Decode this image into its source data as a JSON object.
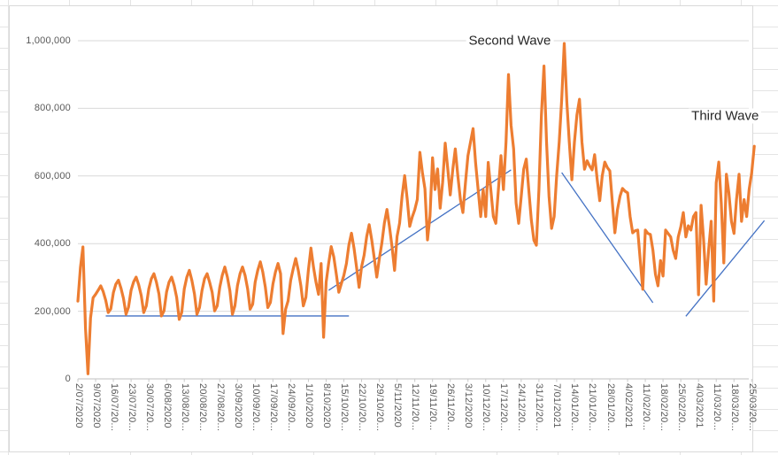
{
  "chart_data": {
    "type": "line",
    "title": "",
    "x_start_label": "2/07/2020",
    "x_cadence": "daily values, weekly tick labels",
    "x_tick_labels": [
      "2/07/2020",
      "9/07/2020",
      "16/07/20...",
      "23/07/20...",
      "30/07/20...",
      "6/08/2020",
      "13/08/20...",
      "20/08/20...",
      "27/08/20...",
      "3/09/2020",
      "10/09/20...",
      "17/09/20...",
      "24/09/20...",
      "1/10/2020",
      "8/10/2020",
      "15/10/20...",
      "22/10/20...",
      "29/10/20...",
      "5/11/2020",
      "12/11/20...",
      "19/11/20...",
      "26/11/20...",
      "3/12/2020",
      "10/12/20...",
      "17/12/20...",
      "24/12/20...",
      "31/12/20...",
      "7/01/2021",
      "14/01/20...",
      "21/01/20...",
      "28/01/20...",
      "4/02/2021",
      "11/02/20...",
      "18/02/20...",
      "25/02/20...",
      "4/03/2021",
      "11/03/20...",
      "18/03/20...",
      "25/03/20..."
    ],
    "y_tick_labels": [
      "0",
      "200,000",
      "400,000",
      "600,000",
      "800,000",
      "1,000,000"
    ],
    "y_min": 0,
    "y_max": 1000000,
    "grid": true,
    "legend": false,
    "series": [
      {
        "name": "daily-series",
        "color": "#ED7D31",
        "values": [
          230000,
          330000,
          390000,
          150000,
          15000,
          180000,
          240000,
          250000,
          262000,
          275000,
          258000,
          232000,
          196000,
          207000,
          255000,
          280000,
          292000,
          268000,
          238000,
          191000,
          212000,
          262000,
          287000,
          301000,
          278000,
          246000,
          196000,
          216000,
          266000,
          296000,
          311000,
          286000,
          251000,
          186000,
          201000,
          257000,
          286000,
          301000,
          276000,
          241000,
          176000,
          196000,
          266000,
          301000,
          321000,
          291000,
          251000,
          191000,
          211000,
          261000,
          296000,
          311000,
          286000,
          256000,
          201000,
          216000,
          271000,
          306000,
          331000,
          301000,
          261000,
          191000,
          216000,
          276000,
          311000,
          331000,
          306000,
          266000,
          206000,
          221000,
          286000,
          321000,
          346000,
          316000,
          271000,
          211000,
          226000,
          281000,
          316000,
          341000,
          311000,
          134000,
          206000,
          231000,
          291000,
          326000,
          356000,
          321000,
          276000,
          216000,
          241000,
          321000,
          387000,
          330000,
          286000,
          250000,
          341000,
          123000,
          286000,
          341000,
          391000,
          361000,
          311000,
          256000,
          281000,
          306000,
          341000,
          396000,
          431000,
          386000,
          331000,
          271000,
          331000,
          366000,
          421000,
          456000,
          411000,
          356000,
          301000,
          356000,
          401000,
          461000,
          501000,
          451000,
          391000,
          321000,
          421000,
          461000,
          541000,
          601000,
          531000,
          451000,
          479000,
          500000,
          531000,
          670000,
          611000,
          562000,
          411000,
          481000,
          654000,
          560000,
          621000,
          505000,
          581000,
          697000,
          621000,
          544000,
          620000,
          680000,
          600000,
          530000,
          492000,
          580000,
          660000,
          700000,
          740000,
          640000,
          560000,
          480000,
          560000,
          480000,
          640000,
          560000,
          480000,
          460000,
          560000,
          660000,
          560000,
          700000,
          900000,
          750000,
          680000,
          520000,
          460000,
          540000,
          620000,
          650000,
          560000,
          470000,
          410000,
          395000,
          560000,
          780000,
          925000,
          700000,
          540000,
          445000,
          480000,
          600000,
          700000,
          825000,
          992000,
          820000,
          700000,
          589000,
          700000,
          780000,
          827000,
          700000,
          620000,
          645000,
          630000,
          618000,
          663000,
          590000,
          527000,
          600000,
          641000,
          625000,
          615000,
          520000,
          432000,
          500000,
          540000,
          563000,
          555000,
          550000,
          480000,
          432000,
          438000,
          440000,
          350000,
          265000,
          440000,
          430000,
          427000,
          380000,
          310000,
          275000,
          350000,
          304000,
          440000,
          430000,
          420000,
          380000,
          356000,
          420000,
          450000,
          492000,
          420000,
          453000,
          440000,
          480000,
          492000,
          249000,
          513000,
          413000,
          280000,
          380000,
          466000,
          230000,
          580000,
          641000,
          520000,
          343000,
          605000,
          550000,
          466000,
          430000,
          530000,
          605000,
          466000,
          530000,
          480000,
          560000,
          610000,
          688000
        ]
      }
    ],
    "trend_lines": [
      {
        "name": "first-wave-baseline",
        "color": "#4472C4",
        "from_day": 11,
        "from_value": 186000,
        "to_day": 107,
        "to_value": 186000
      },
      {
        "name": "second-wave-rise",
        "color": "#4472C4",
        "from_day": 99,
        "from_value": 262000,
        "to_day": 171,
        "to_value": 618000
      },
      {
        "name": "second-wave-fall",
        "color": "#4472C4",
        "from_day": 191,
        "from_value": 610000,
        "to_day": 227,
        "to_value": 225000
      },
      {
        "name": "third-wave-rise",
        "color": "#4472C4",
        "from_day": 240,
        "from_value": 185000,
        "to_day": 271,
        "to_value": 468000
      }
    ],
    "annotations": [
      {
        "label": "Second Wave",
        "day": 170.5,
        "value": 1000000
      },
      {
        "label": "Third Wave",
        "day": 255.5,
        "value": 778000
      }
    ]
  },
  "colors": {
    "series_orange": "#ED7D31",
    "trend_blue": "#4472C4",
    "gridline": "#D9D9D9",
    "axis_line": "#BFBFBF",
    "tick_mark": "#C9C9C9",
    "axis_text": "#595959",
    "annotation_text": "#262626",
    "sheet_grid": "#E4E4E4",
    "chart_border": "#D9D9D9"
  }
}
